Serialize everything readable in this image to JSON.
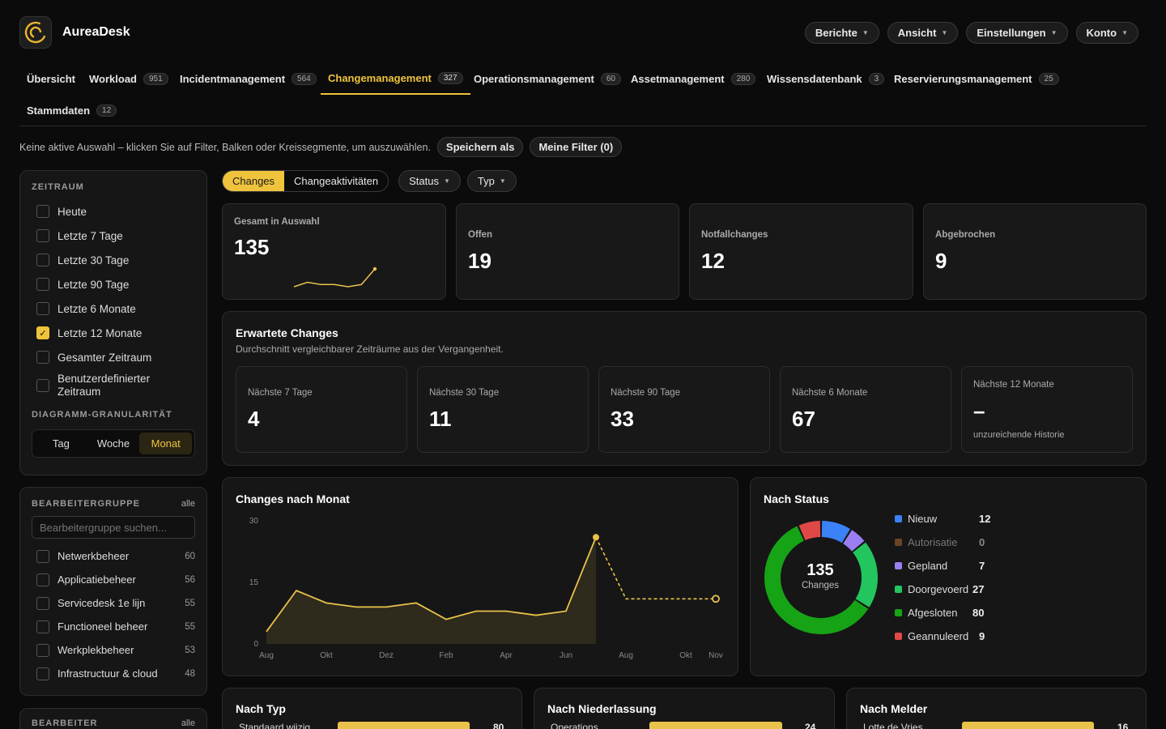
{
  "app": {
    "name": "AureaDesk"
  },
  "header_menus": [
    "Berichte",
    "Ansicht",
    "Einstellungen",
    "Konto"
  ],
  "tabs": [
    {
      "label": "Übersicht",
      "count": ""
    },
    {
      "label": "Workload",
      "count": "951"
    },
    {
      "label": "Incidentmanagement",
      "count": "564"
    },
    {
      "label": "Changemanagement",
      "count": "327",
      "active": true
    },
    {
      "label": "Operationsmanagement",
      "count": "60"
    },
    {
      "label": "Assetmanagement",
      "count": "280"
    },
    {
      "label": "Wissensdatenbank",
      "count": "3"
    },
    {
      "label": "Reservierungsmanagement",
      "count": "25"
    },
    {
      "label": "Stammdaten",
      "count": "12"
    }
  ],
  "selection": {
    "message": "Keine aktive Auswahl – klicken Sie auf Filter, Balken oder Kreissegmente, um auszuwählen.",
    "save_as": "Speichern als",
    "my_filters": "Meine Filter (0)"
  },
  "sidebar": {
    "period_title": "Zeitraum",
    "periods": [
      {
        "label": "Heute",
        "checked": false
      },
      {
        "label": "Letzte 7 Tage",
        "checked": false
      },
      {
        "label": "Letzte 30 Tage",
        "checked": false
      },
      {
        "label": "Letzte 90 Tage",
        "checked": false
      },
      {
        "label": "Letzte 6 Monate",
        "checked": false
      },
      {
        "label": "Letzte 12 Monate",
        "checked": true
      },
      {
        "label": "Gesamter Zeitraum",
        "checked": false
      },
      {
        "label": "Benutzerdefinierter Zeitraum",
        "checked": false
      }
    ],
    "granularity_title": "Diagramm-Granularität",
    "granularity": [
      "Tag",
      "Woche",
      "Monat"
    ],
    "granularity_selected": "Monat",
    "group_title": "Bearbeitergruppe",
    "group_all": "alle",
    "group_search_placeholder": "Bearbeitergruppe suchen...",
    "groups": [
      {
        "label": "Netwerkbeheer",
        "count": "60"
      },
      {
        "label": "Applicatiebeheer",
        "count": "56"
      },
      {
        "label": "Servicedesk 1e lijn",
        "count": "55"
      },
      {
        "label": "Functioneel beheer",
        "count": "55"
      },
      {
        "label": "Werkplekbeheer",
        "count": "53"
      },
      {
        "label": "Infrastructuur & cloud",
        "count": "48"
      }
    ],
    "assignee_title": "Bearbeiter",
    "assignee_all": "alle"
  },
  "toolbar": {
    "toggle": [
      "Changes",
      "Changeaktivitäten"
    ],
    "toggle_selected": "Changes",
    "status": "Status",
    "type": "Typ"
  },
  "kpis": [
    {
      "label": "Gesamt in Auswahl",
      "value": "135",
      "sparkline": [
        4,
        6,
        5,
        5,
        4,
        5,
        12
      ]
    },
    {
      "label": "Offen",
      "value": "19"
    },
    {
      "label": "Notfallchanges",
      "value": "12"
    },
    {
      "label": "Abgebrochen",
      "value": "9"
    }
  ],
  "expected": {
    "title": "Erwartete Changes",
    "subtitle": "Durchschnitt vergleichbarer Zeiträume aus der Vergangenheit.",
    "cards": [
      {
        "label": "Nächste 7 Tage",
        "value": "4",
        "note": ""
      },
      {
        "label": "Nächste 30 Tage",
        "value": "11",
        "note": ""
      },
      {
        "label": "Nächste 90 Tage",
        "value": "33",
        "note": ""
      },
      {
        "label": "Nächste 6 Monate",
        "value": "67",
        "note": ""
      },
      {
        "label": "Nächste 12 Monate",
        "value": "–",
        "note": "unzureichende Historie"
      }
    ]
  },
  "chart_data": [
    {
      "type": "area",
      "title": "Changes nach Monat",
      "x": [
        "Aug",
        "Sep",
        "Okt",
        "Nov",
        "Dez",
        "Jan",
        "Feb",
        "Mär",
        "Apr",
        "Mai",
        "Jun",
        "Jul",
        "Aug",
        "Sep",
        "Okt",
        "Nov"
      ],
      "x_tick_labels": [
        "Aug",
        "Okt",
        "Dez",
        "Feb",
        "Apr",
        "Jun",
        "Aug",
        "Okt",
        "Nov"
      ],
      "ylim": [
        0,
        30
      ],
      "y_ticks": [
        0,
        15,
        30
      ],
      "series": [
        {
          "values": [
            3,
            13,
            10,
            9,
            9,
            10,
            6,
            8,
            8,
            7,
            8,
            26,
            null,
            null,
            null,
            null
          ]
        },
        {
          "values": [
            null,
            null,
            null,
            null,
            null,
            null,
            null,
            null,
            null,
            null,
            null,
            26,
            11,
            11,
            11,
            11
          ],
          "style": "dashed"
        }
      ],
      "colors": {
        "line": "#e9c24b",
        "area": "#2e2a1c"
      }
    },
    {
      "type": "pie",
      "title": "Nach Status",
      "center_value": "135",
      "center_label": "Changes",
      "slices": [
        {
          "label": "Nieuw",
          "value": 12,
          "color": "#3b82f6"
        },
        {
          "label": "Autorisatie",
          "value": 0,
          "color": "#8b5a2b"
        },
        {
          "label": "Gepland",
          "value": 7,
          "color": "#9b7ef0"
        },
        {
          "label": "Doorgevoerd",
          "value": 27,
          "color": "#22c55e"
        },
        {
          "label": "Afgesloten",
          "value": 80,
          "color": "#16a316"
        },
        {
          "label": "Geannuleerd",
          "value": 9,
          "color": "#e04848"
        }
      ]
    }
  ],
  "bottom_panels": [
    {
      "title": "Nach Typ",
      "first_row_label": "Standaard wijzig...",
      "first_row_value": "80"
    },
    {
      "title": "Nach Niederlassung",
      "first_row_label": "Operations",
      "first_row_value": "24"
    },
    {
      "title": "Nach Melder",
      "first_row_label": "Lotte de Vries",
      "first_row_value": "16"
    }
  ],
  "colors": {
    "accent": "#f0c33c",
    "background": "#0b0b0b",
    "panel": "#161616"
  }
}
